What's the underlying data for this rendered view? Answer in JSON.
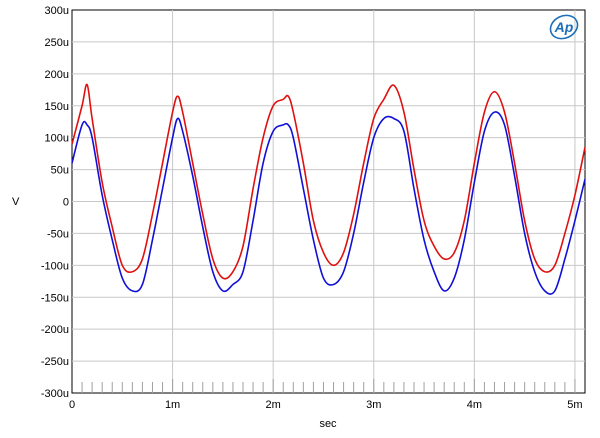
{
  "logo": {
    "text": "Ap",
    "color": "#1d6fb8"
  },
  "chart_data": {
    "type": "line",
    "title": "",
    "xlabel": "sec",
    "ylabel": "V",
    "xlim": [
      0,
      0.0051
    ],
    "ylim": [
      -0.0003,
      0.0003
    ],
    "grid": true,
    "x_ticks": [
      {
        "value": 0,
        "label": "0"
      },
      {
        "value": 0.001,
        "label": "1m"
      },
      {
        "value": 0.002,
        "label": "2m"
      },
      {
        "value": 0.003,
        "label": "3m"
      },
      {
        "value": 0.004,
        "label": "4m"
      },
      {
        "value": 0.005,
        "label": "5m"
      }
    ],
    "y_ticks": [
      {
        "value": 0.0003,
        "label": "300u"
      },
      {
        "value": 0.00025,
        "label": "250u"
      },
      {
        "value": 0.0002,
        "label": "200u"
      },
      {
        "value": 0.00015,
        "label": "150u"
      },
      {
        "value": 0.0001,
        "label": "100u"
      },
      {
        "value": 5e-05,
        "label": "50u"
      },
      {
        "value": 0,
        "label": "0"
      },
      {
        "value": -5e-05,
        "label": "-50u"
      },
      {
        "value": -0.0001,
        "label": "-100u"
      },
      {
        "value": -0.00015,
        "label": "-150u"
      },
      {
        "value": -0.0002,
        "label": "-200u"
      },
      {
        "value": -0.00025,
        "label": "-250u"
      },
      {
        "value": -0.0003,
        "label": "-300u"
      }
    ],
    "series": [
      {
        "color": "#e01010",
        "x": [
          0,
          0.0001,
          0.00015,
          0.0002,
          0.0003,
          0.0004,
          0.0005,
          0.0006,
          0.0007,
          0.0008,
          0.0009,
          0.001,
          0.00105,
          0.0011,
          0.0012,
          0.0013,
          0.0014,
          0.0015,
          0.0016,
          0.0017,
          0.0018,
          0.0019,
          0.002,
          0.0021,
          0.00215,
          0.0022,
          0.0023,
          0.0024,
          0.0025,
          0.0026,
          0.0027,
          0.0028,
          0.0029,
          0.003,
          0.0031,
          0.0032,
          0.0033,
          0.0034,
          0.0035,
          0.0036,
          0.0037,
          0.0038,
          0.0039,
          0.004,
          0.0041,
          0.0042,
          0.0043,
          0.0044,
          0.0045,
          0.0046,
          0.0047,
          0.0048,
          0.0049,
          0.005,
          0.0051
        ],
        "values": [
          9e-05,
          0.00015,
          0.000183,
          0.00013,
          3e-05,
          -4e-05,
          -0.0001,
          -0.00011,
          -9e-05,
          -2e-05,
          6e-05,
          0.00014,
          0.000165,
          0.00014,
          6e-05,
          -2e-05,
          -9e-05,
          -0.00012,
          -0.00011,
          -7e-05,
          2e-05,
          0.0001,
          0.00015,
          0.00016,
          0.000165,
          0.00014,
          6e-05,
          -3e-05,
          -8e-05,
          -0.0001,
          -8e-05,
          -2e-05,
          6e-05,
          0.00013,
          0.00016,
          0.000182,
          0.00014,
          5e-05,
          -3e-05,
          -7e-05,
          -9e-05,
          -8e-05,
          -3e-05,
          6e-05,
          0.00014,
          0.000172,
          0.00014,
          6e-05,
          -3e-05,
          -9e-05,
          -0.00011,
          -0.0001,
          -5e-05,
          1e-05,
          8.5e-05
        ]
      },
      {
        "color": "#1010d8",
        "x": [
          0,
          0.0001,
          0.00015,
          0.0002,
          0.0003,
          0.0004,
          0.0005,
          0.0006,
          0.0007,
          0.0008,
          0.0009,
          0.001,
          0.00105,
          0.0011,
          0.0012,
          0.0013,
          0.0014,
          0.0015,
          0.0016,
          0.0017,
          0.0018,
          0.0019,
          0.002,
          0.0021,
          0.00215,
          0.0022,
          0.0023,
          0.0024,
          0.0025,
          0.0026,
          0.0027,
          0.0028,
          0.0029,
          0.003,
          0.0031,
          0.0032,
          0.0033,
          0.0034,
          0.0035,
          0.0036,
          0.0037,
          0.0038,
          0.0039,
          0.004,
          0.0041,
          0.0042,
          0.0043,
          0.0044,
          0.0045,
          0.0046,
          0.0047,
          0.0048,
          0.0049,
          0.005,
          0.0051
        ],
        "values": [
          6e-05,
          0.00012,
          0.00012,
          0.0001,
          1e-05,
          -6e-05,
          -0.00012,
          -0.00014,
          -0.00013,
          -6e-05,
          2e-05,
          0.0001,
          0.00013,
          0.00011,
          4e-05,
          -4e-05,
          -0.00011,
          -0.00014,
          -0.00013,
          -0.00011,
          -3e-05,
          6e-05,
          0.00011,
          0.00012,
          0.00012,
          0.0001,
          2e-05,
          -6e-05,
          -0.00012,
          -0.00013,
          -0.00011,
          -5e-05,
          3e-05,
          0.0001,
          0.00013,
          0.00013,
          0.00011,
          2e-05,
          -6e-05,
          -0.00011,
          -0.00014,
          -0.00012,
          -6e-05,
          3e-05,
          0.00011,
          0.00014,
          0.00012,
          4e-05,
          -5e-05,
          -0.00011,
          -0.00014,
          -0.00014,
          -9e-05,
          -3e-05,
          3.5e-05
        ]
      }
    ]
  }
}
